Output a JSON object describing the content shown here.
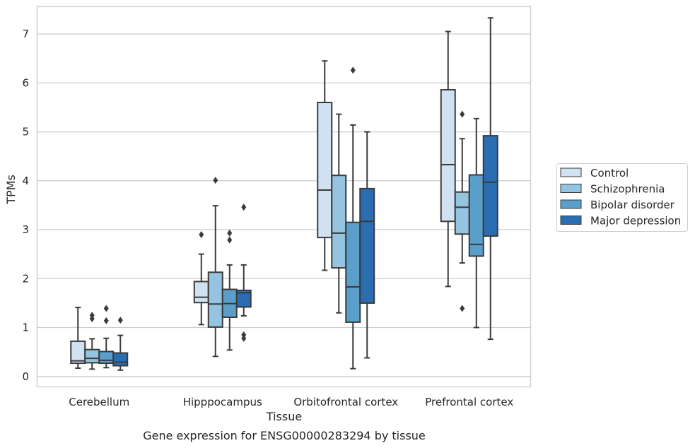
{
  "chart_data": {
    "type": "box",
    "xlabel": "Tissue",
    "ylabel": "TPMs",
    "caption": "Gene expression for ENSG00000283294 by tissue",
    "ylim": [
      -0.22,
      7.55
    ],
    "yticks": [
      0,
      1,
      2,
      3,
      4,
      5,
      6,
      7
    ],
    "grid": "horizontal",
    "legend_position": "right",
    "categories": [
      "Cerebellum",
      "Hipppocampus",
      "Orbitofrontal cortex",
      "Prefrontal cortex"
    ],
    "series": [
      {
        "name": "Control",
        "color": "#d0e1f2",
        "boxes": [
          {
            "whisker_low": 0.17,
            "q1": 0.27,
            "median": 0.32,
            "q3": 0.72,
            "whisker_high": 1.41,
            "outliers": []
          },
          {
            "whisker_low": 1.06,
            "q1": 1.51,
            "median": 1.62,
            "q3": 1.94,
            "whisker_high": 2.5,
            "outliers": [
              2.9
            ]
          },
          {
            "whisker_low": 2.17,
            "q1": 2.84,
            "median": 3.81,
            "q3": 5.6,
            "whisker_high": 6.45,
            "outliers": []
          },
          {
            "whisker_low": 1.84,
            "q1": 3.17,
            "median": 4.33,
            "q3": 5.86,
            "whisker_high": 7.05,
            "outliers": []
          }
        ]
      },
      {
        "name": "Schizophrenia",
        "color": "#94c4df",
        "boxes": [
          {
            "whisker_low": 0.15,
            "q1": 0.28,
            "median": 0.37,
            "q3": 0.55,
            "whisker_high": 0.77,
            "outliers": [
              1.25,
              1.18
            ]
          },
          {
            "whisker_low": 0.41,
            "q1": 1.01,
            "median": 1.48,
            "q3": 2.13,
            "whisker_high": 3.49,
            "outliers": [
              4.01
            ]
          },
          {
            "whisker_low": 1.3,
            "q1": 2.22,
            "median": 2.93,
            "q3": 4.11,
            "whisker_high": 5.36,
            "outliers": []
          },
          {
            "whisker_low": 2.32,
            "q1": 2.91,
            "median": 3.46,
            "q3": 3.77,
            "whisker_high": 4.86,
            "outliers": [
              5.36,
              1.39
            ]
          }
        ]
      },
      {
        "name": "Bipolar disorder",
        "color": "#5a9fca",
        "boxes": [
          {
            "whisker_low": 0.18,
            "q1": 0.27,
            "median": 0.33,
            "q3": 0.51,
            "whisker_high": 0.78,
            "outliers": [
              1.39,
              1.14
            ]
          },
          {
            "whisker_low": 0.54,
            "q1": 1.21,
            "median": 1.49,
            "q3": 1.78,
            "whisker_high": 2.28,
            "outliers": [
              2.93,
              2.79
            ]
          },
          {
            "whisker_low": 0.16,
            "q1": 1.11,
            "median": 1.83,
            "q3": 3.15,
            "whisker_high": 5.14,
            "outliers": [
              6.26
            ]
          },
          {
            "whisker_low": 1.0,
            "q1": 2.46,
            "median": 2.7,
            "q3": 4.12,
            "whisker_high": 5.27,
            "outliers": []
          }
        ]
      },
      {
        "name": "Major depression",
        "color": "#2a6db0",
        "boxes": [
          {
            "whisker_low": 0.13,
            "q1": 0.22,
            "median": 0.29,
            "q3": 0.48,
            "whisker_high": 0.84,
            "outliers": [
              1.15
            ]
          },
          {
            "whisker_low": 1.24,
            "q1": 1.42,
            "median": 1.71,
            "q3": 1.76,
            "whisker_high": 2.28,
            "outliers": [
              3.46,
              0.85,
              0.78
            ]
          },
          {
            "whisker_low": 0.38,
            "q1": 1.5,
            "median": 3.17,
            "q3": 3.84,
            "whisker_high": 5.0,
            "outliers": []
          },
          {
            "whisker_low": 0.76,
            "q1": 2.87,
            "median": 3.97,
            "q3": 4.92,
            "whisker_high": 7.33,
            "outliers": []
          }
        ]
      }
    ]
  }
}
